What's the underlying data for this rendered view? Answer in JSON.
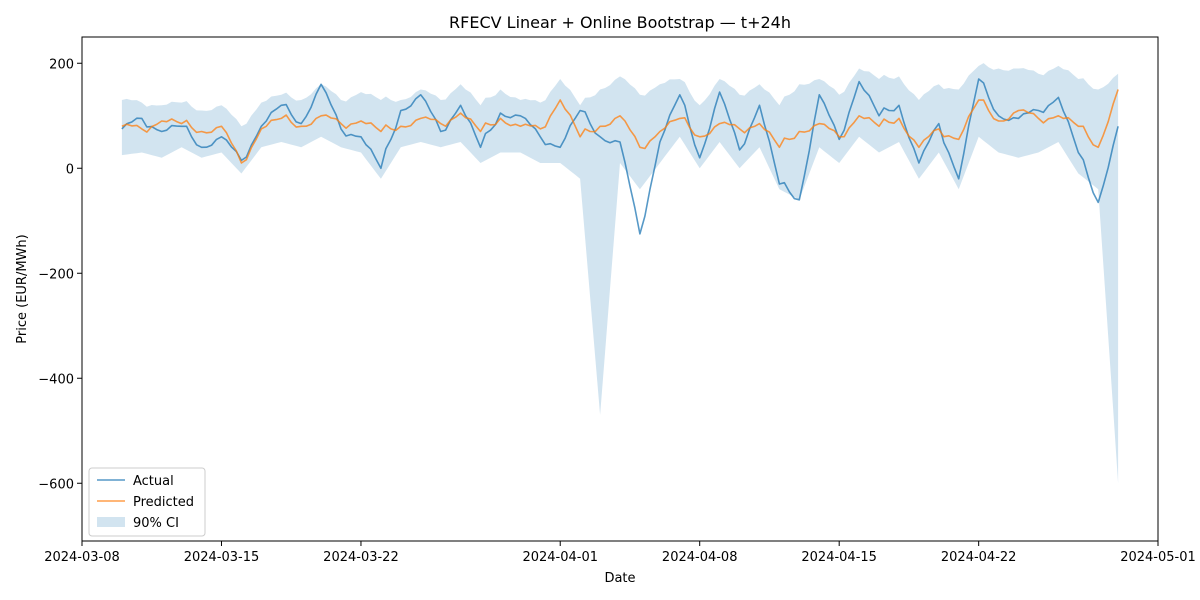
{
  "chart_data": {
    "type": "line",
    "title": "RFECV Linear + Online Bootstrap — t+24h",
    "xlabel": "Date",
    "ylabel": "Price (EUR/MWh)",
    "xlim": [
      "2024-03-08",
      "2024-05-01"
    ],
    "ylim": [
      -710,
      250
    ],
    "grid": false,
    "legend_position": "lower-left",
    "x_ticks": [
      {
        "date": "2024-03-08",
        "label": "2024-03-08"
      },
      {
        "date": "2024-03-15",
        "label": "2024-03-15"
      },
      {
        "date": "2024-03-22",
        "label": "2024-03-22"
      },
      {
        "date": "2024-04-01",
        "label": "2024-04-01"
      },
      {
        "date": "2024-04-08",
        "label": "2024-04-08"
      },
      {
        "date": "2024-04-15",
        "label": "2024-04-15"
      },
      {
        "date": "2024-04-22",
        "label": "2024-04-22"
      },
      {
        "date": "2024-05-01",
        "label": "2024-05-01"
      }
    ],
    "y_ticks": [
      {
        "value": 200,
        "label": "200"
      },
      {
        "value": 0,
        "label": "0"
      },
      {
        "value": -200,
        "label": "−200"
      },
      {
        "value": -400,
        "label": "−400"
      },
      {
        "value": -600,
        "label": "−600"
      }
    ],
    "x": [
      "2024-03-10",
      "2024-03-11",
      "2024-03-12",
      "2024-03-13",
      "2024-03-14",
      "2024-03-15",
      "2024-03-16",
      "2024-03-17",
      "2024-03-18",
      "2024-03-19",
      "2024-03-20",
      "2024-03-21",
      "2024-03-22",
      "2024-03-23",
      "2024-03-24",
      "2024-03-25",
      "2024-03-26",
      "2024-03-27",
      "2024-03-28",
      "2024-03-29",
      "2024-03-30",
      "2024-03-31",
      "2024-04-01",
      "2024-04-02",
      "2024-04-03",
      "2024-04-04",
      "2024-04-05",
      "2024-04-06",
      "2024-04-07",
      "2024-04-08",
      "2024-04-09",
      "2024-04-10",
      "2024-04-11",
      "2024-04-12",
      "2024-04-13",
      "2024-04-14",
      "2024-04-15",
      "2024-04-16",
      "2024-04-17",
      "2024-04-18",
      "2024-04-19",
      "2024-04-20",
      "2024-04-21",
      "2024-04-22",
      "2024-04-23",
      "2024-04-24",
      "2024-04-25",
      "2024-04-26",
      "2024-04-27",
      "2024-04-28",
      "2024-04-29"
    ],
    "series": [
      {
        "name": "Actual",
        "color": "#1f77b4",
        "values": [
          75,
          95,
          70,
          80,
          40,
          60,
          15,
          80,
          120,
          85,
          160,
          75,
          60,
          0,
          110,
          140,
          70,
          120,
          40,
          105,
          100,
          60,
          40,
          110,
          60,
          50,
          -125,
          50,
          140,
          20,
          145,
          35,
          120,
          -30,
          -60,
          140,
          55,
          165,
          100,
          120,
          10,
          85,
          -20,
          170,
          100,
          95,
          110,
          135,
          30,
          -65,
          80
        ]
      },
      {
        "name": "Predicted",
        "color": "#ff7f0e",
        "values": [
          80,
          75,
          90,
          85,
          70,
          80,
          10,
          75,
          95,
          80,
          100,
          85,
          90,
          70,
          80,
          95,
          85,
          105,
          70,
          95,
          80,
          75,
          130,
          60,
          80,
          100,
          40,
          70,
          95,
          60,
          85,
          75,
          85,
          40,
          70,
          85,
          60,
          100,
          80,
          95,
          40,
          75,
          55,
          130,
          90,
          110,
          95,
          100,
          80,
          40,
          150
        ]
      },
      {
        "name": "90% CI",
        "color": "#1f77b4",
        "lower": [
          25,
          30,
          20,
          40,
          20,
          30,
          -10,
          40,
          50,
          40,
          60,
          40,
          30,
          -20,
          40,
          50,
          40,
          50,
          10,
          30,
          30,
          10,
          10,
          -20,
          -470,
          10,
          -40,
          10,
          60,
          0,
          50,
          0,
          40,
          -40,
          -60,
          40,
          10,
          60,
          30,
          50,
          -20,
          30,
          -40,
          60,
          30,
          20,
          30,
          50,
          -10,
          -40,
          -600
        ],
        "upper": [
          130,
          125,
          120,
          125,
          110,
          120,
          80,
          125,
          140,
          130,
          160,
          130,
          145,
          130,
          130,
          150,
          130,
          160,
          120,
          150,
          130,
          125,
          170,
          120,
          150,
          175,
          140,
          160,
          170,
          120,
          170,
          140,
          160,
          120,
          160,
          170,
          140,
          190,
          170,
          175,
          130,
          160,
          150,
          195,
          190,
          190,
          180,
          195,
          170,
          150,
          180
        ]
      }
    ],
    "legend": [
      {
        "label": "Actual",
        "kind": "line",
        "color": "#1f77b4"
      },
      {
        "label": "Predicted",
        "kind": "line",
        "color": "#ff7f0e"
      },
      {
        "label": "90% CI",
        "kind": "patch",
        "color": "#1f77b4"
      }
    ]
  }
}
